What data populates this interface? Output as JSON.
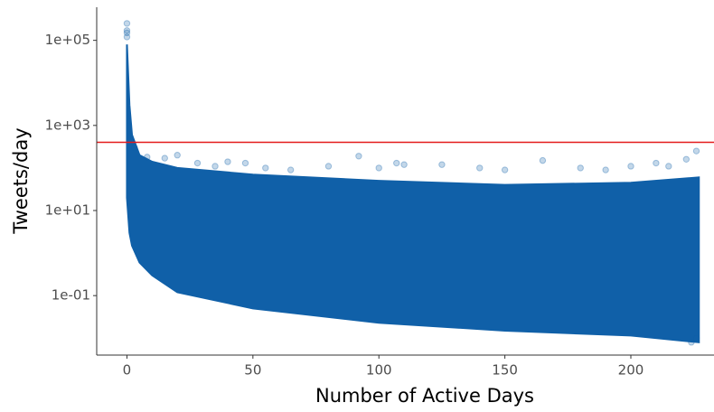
{
  "chart_data": {
    "type": "scatter",
    "xlabel": "Number of Active Days",
    "ylabel": "Tweets/day",
    "color": "#1060a8",
    "ylog": true,
    "xlim": [
      -12,
      233
    ],
    "ylim": [
      0.004,
      600000
    ],
    "xticks": [
      0,
      50,
      100,
      150,
      200
    ],
    "yticks": [
      {
        "value": 0.1,
        "label": "1e-01"
      },
      {
        "value": 10,
        "label": "1e+01"
      },
      {
        "value": 1000,
        "label": "1e+03"
      },
      {
        "value": 100000,
        "label": "1e+05"
      }
    ],
    "reference_line": {
      "value": 400,
      "color": "#e41a1c"
    },
    "band": {
      "x": [
        0,
        1,
        2,
        5,
        10,
        20,
        50,
        100,
        150,
        200,
        227
      ],
      "upper": [
        80000,
        3000,
        600,
        200,
        140,
        100,
        70,
        50,
        40,
        45,
        60
      ],
      "lower": [
        20,
        3,
        1.5,
        0.6,
        0.3,
        0.12,
        0.05,
        0.023,
        0.015,
        0.0115,
        0.008
      ]
    },
    "x": [
      0,
      0,
      0,
      0,
      3,
      8,
      15,
      20,
      28,
      35,
      40,
      47,
      55,
      65,
      80,
      92,
      100,
      107,
      110,
      125,
      140,
      150,
      165,
      180,
      190,
      200,
      210,
      215,
      222,
      226,
      226,
      224
    ],
    "y": [
      250000,
      170000,
      150000,
      120000,
      300,
      180,
      170,
      200,
      130,
      110,
      140,
      130,
      100,
      90,
      110,
      190,
      100,
      130,
      120,
      120,
      100,
      90,
      150,
      100,
      90,
      110,
      130,
      110,
      160,
      250,
      0.01,
      0.008
    ]
  }
}
